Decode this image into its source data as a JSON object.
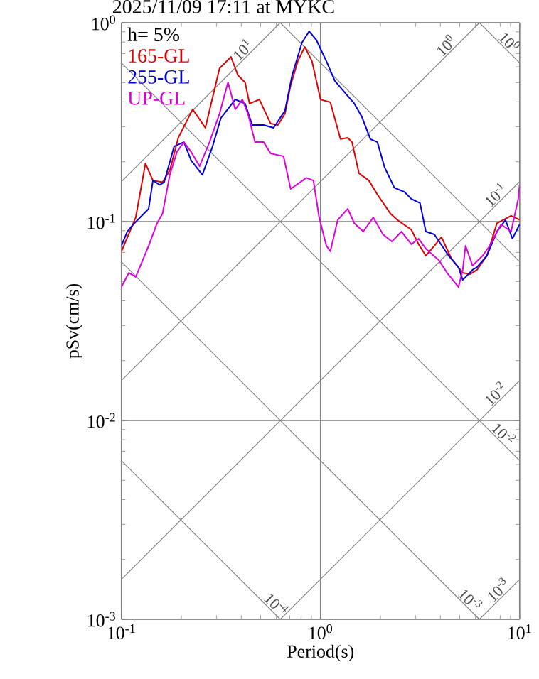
{
  "chart_data": {
    "type": "line",
    "title": "2025/11/09 17:11 at MYKC",
    "xlabel": "Period(s)",
    "ylabel": "pSv(cm/s)",
    "log": "xy",
    "grid": true,
    "legend": "top left",
    "marker": "none",
    "line_style": "solid",
    "xlim": [
      0.1,
      10
    ],
    "ylim": [
      0.001,
      1
    ],
    "xticks": [
      {
        "value": 0.1,
        "label": "10$^{-1}$"
      },
      {
        "value": 1,
        "label": "10$^{0}$"
      },
      {
        "value": 10,
        "label": "10$^{1}$"
      }
    ],
    "yticks": [
      {
        "value": 0.001,
        "label": "10$^{-3}$"
      },
      {
        "value": 0.01,
        "label": "10$^{-2}$"
      },
      {
        "value": 0.1,
        "label": "10$^{-1}$"
      },
      {
        "value": 1,
        "label": "10$^{0}$"
      }
    ],
    "series": [
      {
        "name": "165-GL",
        "color": "#dd0000",
        "x": [
          0.1,
          0.118,
          0.132,
          0.144,
          0.161,
          0.175,
          0.193,
          0.228,
          0.264,
          0.311,
          0.355,
          0.385,
          0.418,
          0.44,
          0.493,
          0.562,
          0.611,
          0.663,
          0.708,
          0.769,
          0.834,
          0.906,
          1.0,
          1.12,
          1.26,
          1.37,
          1.44,
          1.56,
          1.75,
          1.93,
          2.24,
          2.43,
          2.86,
          3.11,
          3.38,
          3.73,
          4.05,
          4.54,
          5.18,
          5.62,
          6.11,
          6.85,
          7.69,
          9.06,
          10
        ],
        "values": [
          0.0708,
          0.105,
          0.196,
          0.161,
          0.158,
          0.181,
          0.264,
          0.367,
          0.296,
          0.59,
          0.674,
          0.544,
          0.501,
          0.392,
          0.411,
          0.311,
          0.306,
          0.349,
          0.485,
          0.641,
          0.756,
          0.641,
          0.411,
          0.398,
          0.26,
          0.264,
          0.251,
          0.175,
          0.161,
          0.137,
          0.11,
          0.102,
          0.091,
          0.0769,
          0.0674,
          0.0756,
          0.0835,
          0.0652,
          0.0553,
          0.0544,
          0.0572,
          0.0674,
          0.098,
          0.107,
          0.102
        ]
      },
      {
        "name": "255-GL",
        "color": "#0000dd",
        "x": [
          0.1,
          0.107,
          0.116,
          0.137,
          0.144,
          0.156,
          0.164,
          0.184,
          0.206,
          0.224,
          0.255,
          0.287,
          0.316,
          0.373,
          0.418,
          0.454,
          0.518,
          0.581,
          0.663,
          0.72,
          0.807,
          0.877,
          0.952,
          1.07,
          1.18,
          1.32,
          1.48,
          1.61,
          1.78,
          1.93,
          2.1,
          2.35,
          2.64,
          2.86,
          3.16,
          3.38,
          3.73,
          4.4,
          4.93,
          5.18,
          5.8,
          6.11,
          6.85,
          7.69,
          8.49,
          9.2,
          10
        ],
        "values": [
          0.0756,
          0.0891,
          0.098,
          0.116,
          0.161,
          0.153,
          0.158,
          0.239,
          0.251,
          0.203,
          0.172,
          0.239,
          0.332,
          0.411,
          0.392,
          0.306,
          0.306,
          0.296,
          0.361,
          0.544,
          0.794,
          0.906,
          0.821,
          0.641,
          0.51,
          0.447,
          0.392,
          0.338,
          0.26,
          0.251,
          0.187,
          0.148,
          0.141,
          0.13,
          0.124,
          0.0891,
          0.0863,
          0.0674,
          0.059,
          0.0509,
          0.0572,
          0.059,
          0.0674,
          0.0891,
          0.102,
          0.0821,
          0.0968
        ]
      },
      {
        "name": "UP-GL",
        "color": "#dd00dd",
        "x": [
          0.1,
          0.109,
          0.118,
          0.137,
          0.151,
          0.161,
          0.175,
          0.19,
          0.206,
          0.224,
          0.247,
          0.277,
          0.311,
          0.343,
          0.373,
          0.405,
          0.432,
          0.469,
          0.518,
          0.562,
          0.652,
          0.708,
          0.849,
          0.921,
          0.984,
          1.07,
          1.12,
          1.22,
          1.37,
          1.48,
          1.64,
          1.84,
          2.06,
          2.28,
          2.55,
          2.86,
          3.11,
          3.38,
          3.92,
          4.32,
          4.93,
          5.18,
          5.35,
          5.8,
          6.52,
          7.08,
          8.07,
          9.06,
          9.84,
          10
        ],
        "values": [
          0.0469,
          0.0553,
          0.0527,
          0.0756,
          0.098,
          0.11,
          0.172,
          0.224,
          0.251,
          0.224,
          0.19,
          0.251,
          0.349,
          0.501,
          0.367,
          0.411,
          0.349,
          0.251,
          0.251,
          0.22,
          0.213,
          0.146,
          0.166,
          0.161,
          0.105,
          0.0756,
          0.0708,
          0.102,
          0.116,
          0.098,
          0.0891,
          0.105,
          0.0863,
          0.0794,
          0.0891,
          0.0769,
          0.0821,
          0.0731,
          0.0642,
          0.0553,
          0.0469,
          0.0572,
          0.0756,
          0.0601,
          0.0674,
          0.0756,
          0.0968,
          0.0891,
          0.13,
          0.153
        ]
      },
      {
        "color": "#808080",
        "x": [
          0.1,
          0.628
        ],
        "values": [
          0.00628,
          0.001
        ]
      },
      {
        "color": "#808080",
        "x": [
          0.1,
          6.28
        ],
        "values": [
          0.0628,
          0.001
        ]
      },
      {
        "color": "#808080",
        "x": [
          0.1,
          10
        ],
        "values": [
          0.628,
          0.00628
        ]
      },
      {
        "color": "#808080",
        "x": [
          0.628,
          10
        ],
        "values": [
          1,
          0.0628
        ]
      },
      {
        "color": "#808080",
        "x": [
          6.28,
          10
        ],
        "values": [
          1,
          0.628
        ]
      },
      {
        "color": "#808080",
        "x": [
          6.28,
          10
        ],
        "values": [
          0.001,
          0.00159
        ]
      },
      {
        "color": "#808080",
        "x": [
          0.628,
          10
        ],
        "values": [
          0.001,
          0.0159
        ]
      },
      {
        "color": "#808080",
        "x": [
          0.1,
          10
        ],
        "values": [
          0.00159,
          0.159
        ]
      },
      {
        "color": "#808080",
        "x": [
          0.1,
          6.28
        ],
        "values": [
          0.0159,
          1
        ]
      },
      {
        "color": "#808080",
        "x": [
          0.1,
          0.628
        ],
        "values": [
          0.159,
          1
        ]
      }
    ],
    "annotations": [
      "h= 5%",
      {
        "text": "10$^{1}$",
        "x": 0.432,
        "y": 0.687
      },
      {
        "text": "10$^{0}$",
        "x": 4.54,
        "y": 0.722
      },
      {
        "text": "10$^{0}$",
        "x": 8.34,
        "y": 0.753
      },
      {
        "text": "10$^{-1}$",
        "x": 8.07,
        "y": 0.128
      },
      {
        "text": "10$^{-2}$",
        "x": 8.07,
        "y": 0.0128
      },
      {
        "text": "10$^{-2}$",
        "x": 7.8,
        "y": 0.00805
      },
      {
        "text": "10$^{-3}$",
        "x": 8.3,
        "y": 0.00132
      },
      {
        "text": "10$^{-3}$",
        "x": 5.3,
        "y": 0.00118
      },
      {
        "text": "10$^{-4}$",
        "x": 0.562,
        "y": 0.00112
      }
    ]
  }
}
